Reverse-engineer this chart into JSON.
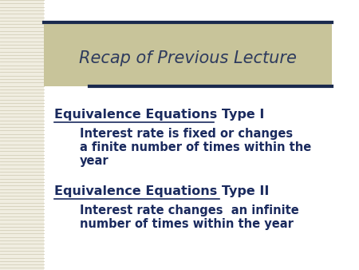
{
  "title": "Recap of Previous Lecture",
  "title_color": "#2e3b5e",
  "title_bg_color": "#c8c49a",
  "title_border_color": "#1a2a4e",
  "bg_color": "#ffffff",
  "stripe_bg_color": "#f0ede0",
  "heading1": "Equivalence Equations Type I",
  "body1_lines": [
    "Interest rate is fixed or changes",
    "a finite number of times within the",
    "year"
  ],
  "heading2": "Equivalence Equations Type II",
  "body2_lines": [
    "Interest rate changes  an infinite",
    "number of times within the year"
  ],
  "heading_color": "#1a2a5e",
  "body_color": "#1a2a5e",
  "heading_fontsize": 11.5,
  "body_fontsize": 10.5,
  "title_fontsize": 15
}
